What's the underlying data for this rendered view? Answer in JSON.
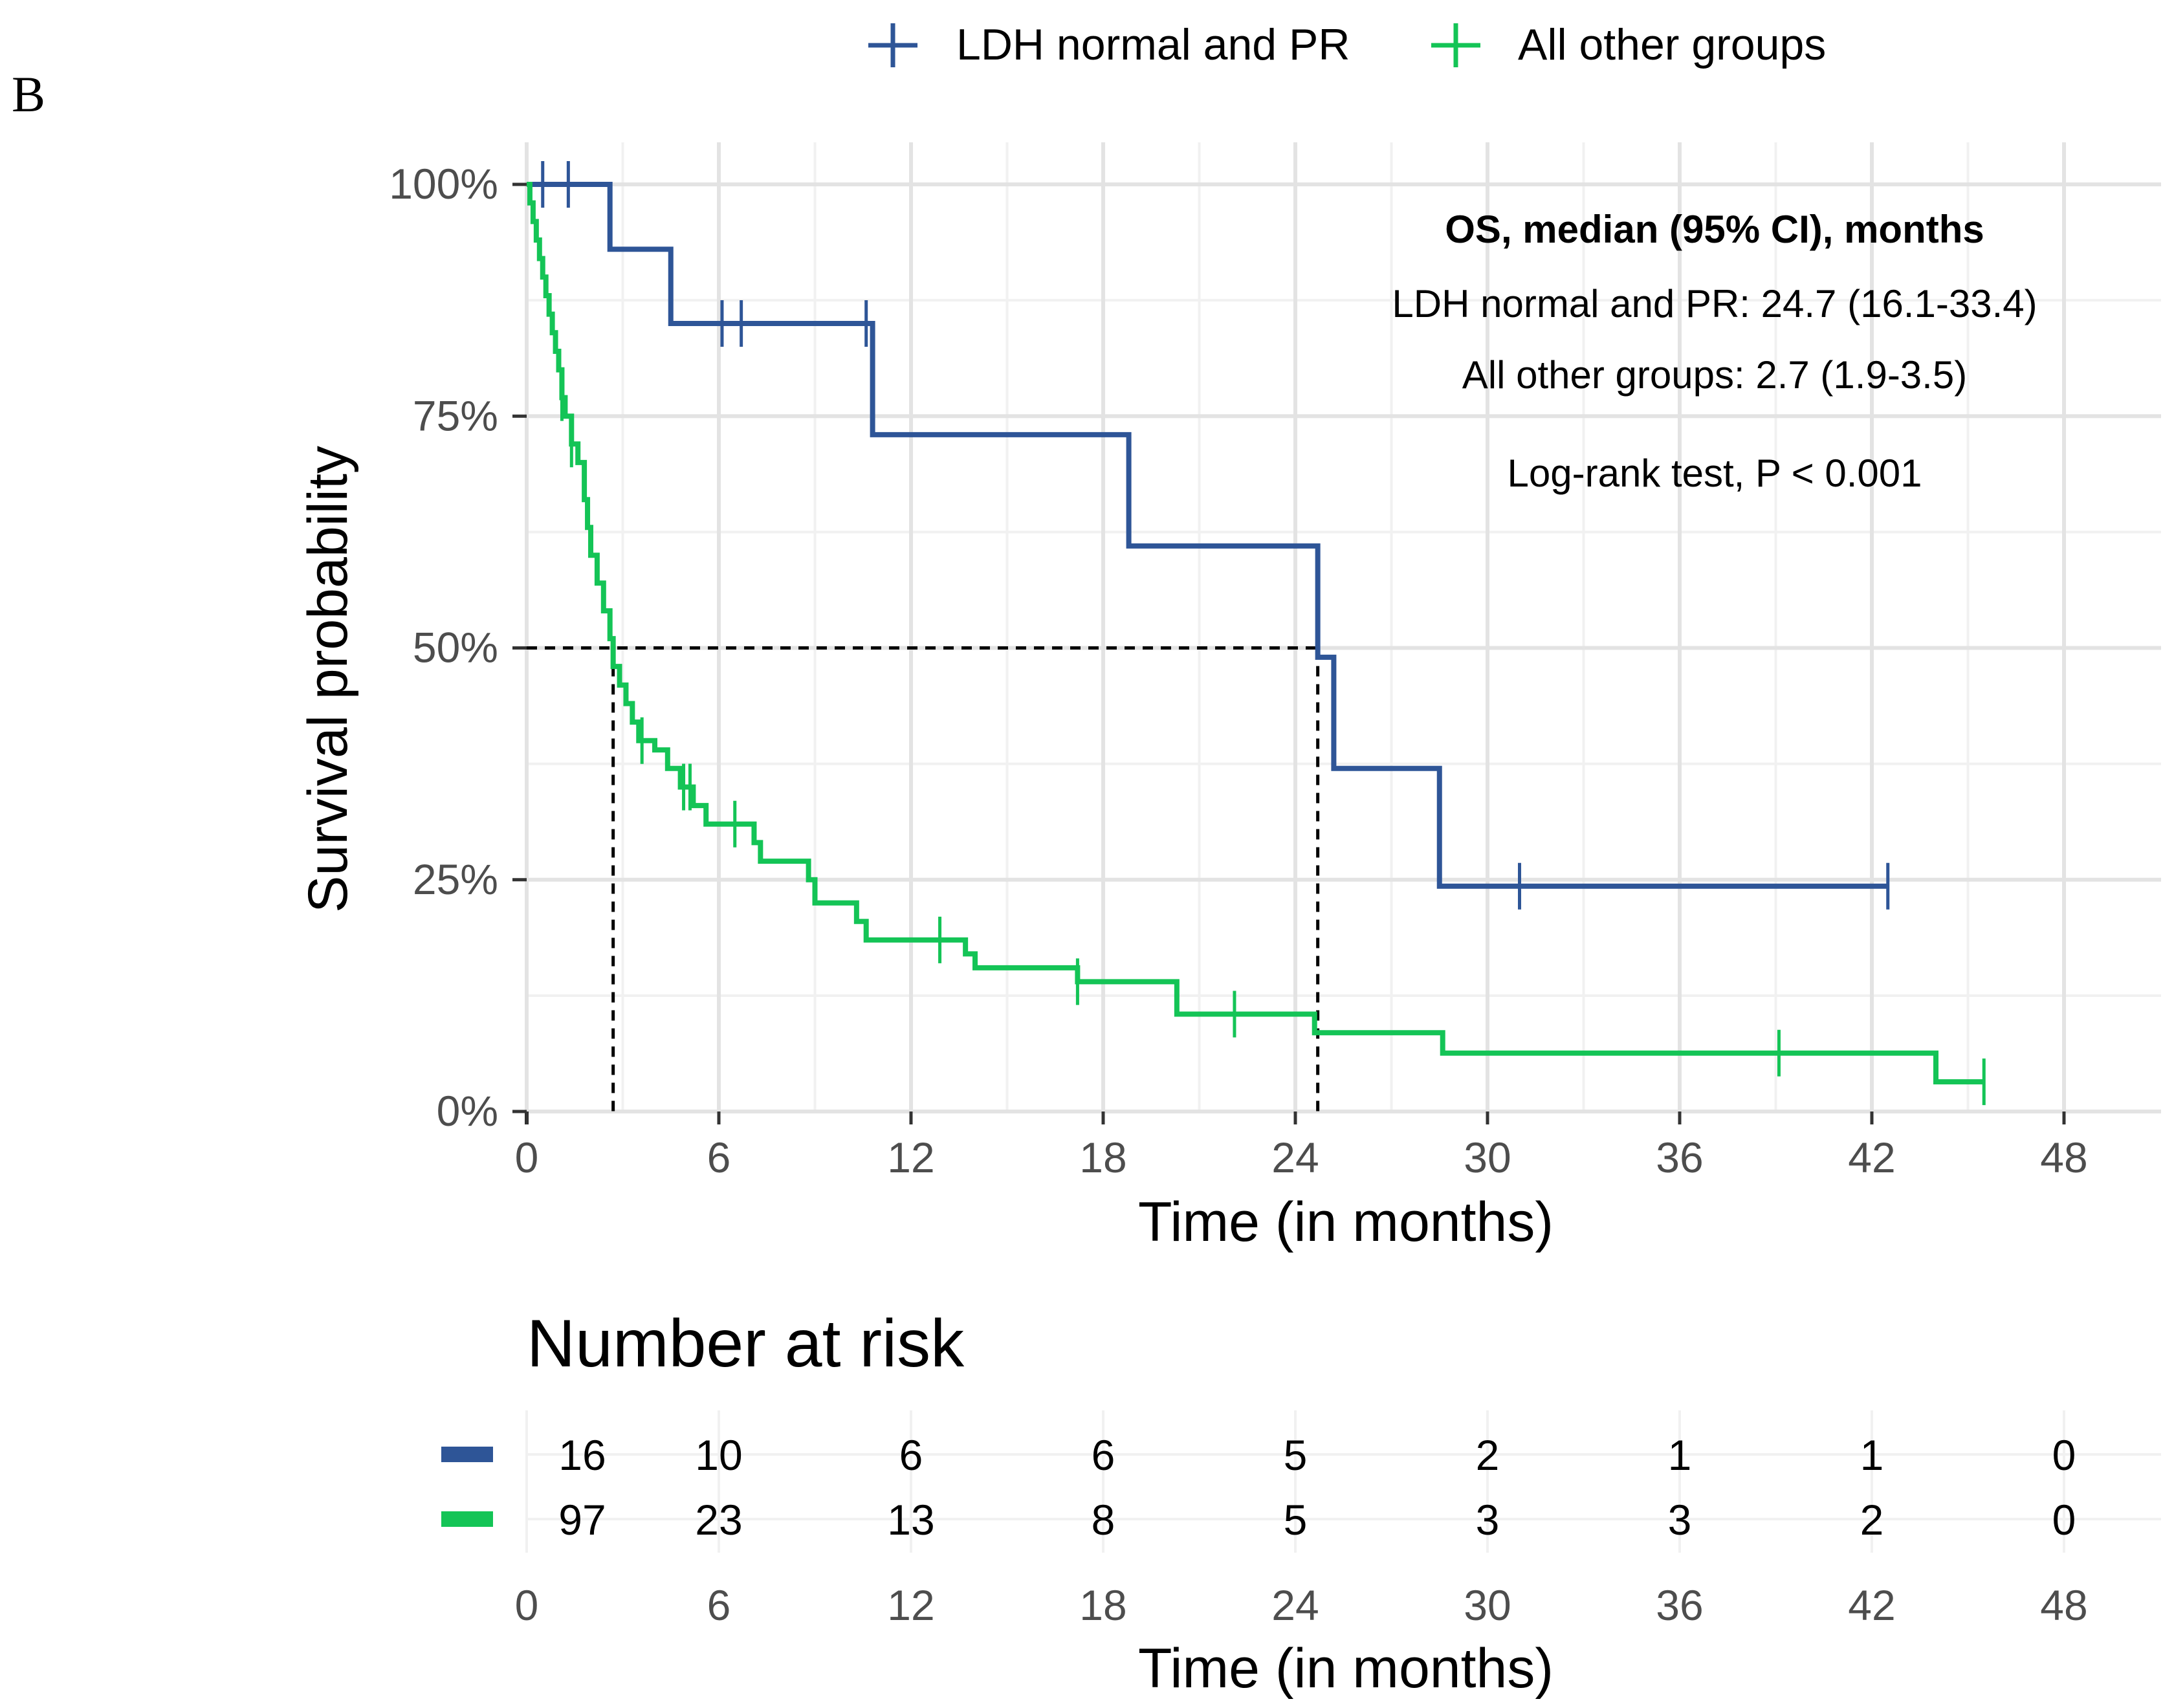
{
  "panel_label": "B",
  "colors": {
    "ldh": "#2e5597",
    "other": "#14c456",
    "grid_major": "#e3e3e3",
    "grid_minor": "#f1f1f1",
    "tick_text": "#4d4d4d",
    "text": "#000000"
  },
  "legend": {
    "ldh_label": "LDH normal and PR",
    "other_label": "All other groups"
  },
  "annotation": {
    "heading": "OS, median (95% CI), months",
    "ldh_line": "LDH normal and PR: 24.7 (16.1-33.4)",
    "other_line": "All other groups: 2.7 (1.9-3.5)",
    "test_line": "Log-rank test, P < 0.001"
  },
  "risk_table": {
    "title": "Number at risk",
    "xlabel": "Time (in months)",
    "times": [
      0,
      6,
      12,
      18,
      24,
      30,
      36,
      42,
      48
    ],
    "time_labels": [
      "0",
      "6",
      "12",
      "18",
      "24",
      "30",
      "36",
      "42",
      "48"
    ],
    "ldh_counts": [
      "16",
      "10",
      "6",
      "6",
      "5",
      "2",
      "1",
      "1",
      "0"
    ],
    "other_counts": [
      "97",
      "23",
      "13",
      "8",
      "5",
      "3",
      "3",
      "2",
      "0"
    ]
  },
  "chart_data": {
    "type": "line",
    "subtype": "kaplan-meier step",
    "xlabel": "Time (in months)",
    "ylabel": "Survival probability",
    "xlim": [
      0,
      48
    ],
    "ylim": [
      0,
      1
    ],
    "x_ticks": [
      0,
      6,
      12,
      18,
      24,
      30,
      36,
      42,
      48
    ],
    "x_tick_labels": [
      "0",
      "6",
      "12",
      "18",
      "24",
      "30",
      "36",
      "42",
      "48"
    ],
    "y_ticks": [
      0,
      0.25,
      0.5,
      0.75,
      1
    ],
    "y_tick_labels": [
      "0%",
      "25%",
      "50%",
      "75%",
      "100%"
    ],
    "legend_position": "top",
    "median_lines": [
      {
        "x": 2.7,
        "y": 0.5
      },
      {
        "x": 24.7,
        "y": 0.5
      }
    ],
    "series": [
      {
        "name": "LDH normal and PR",
        "color_key": "ldh",
        "steps": [
          [
            0,
            1.0
          ],
          [
            2.6,
            0.93
          ],
          [
            4.5,
            0.85
          ],
          [
            10.8,
            0.73
          ],
          [
            18.8,
            0.61
          ],
          [
            24.7,
            0.49
          ],
          [
            25.2,
            0.37
          ],
          [
            28.5,
            0.243
          ]
        ],
        "end_time": 42.5,
        "censor_times": [
          0.5,
          1.3,
          6.1,
          6.7,
          10.6,
          31.0,
          42.5
        ]
      },
      {
        "name": "All other groups",
        "color_key": "other",
        "steps": [
          [
            0,
            1.0
          ],
          [
            0.1,
            0.98
          ],
          [
            0.2,
            0.96
          ],
          [
            0.3,
            0.94
          ],
          [
            0.4,
            0.92
          ],
          [
            0.5,
            0.9
          ],
          [
            0.6,
            0.88
          ],
          [
            0.7,
            0.86
          ],
          [
            0.8,
            0.84
          ],
          [
            0.9,
            0.82
          ],
          [
            1.0,
            0.8
          ],
          [
            1.1,
            0.77
          ],
          [
            1.2,
            0.75
          ],
          [
            1.4,
            0.72
          ],
          [
            1.6,
            0.7
          ],
          [
            1.8,
            0.66
          ],
          [
            1.9,
            0.63
          ],
          [
            2.0,
            0.6
          ],
          [
            2.2,
            0.57
          ],
          [
            2.4,
            0.54
          ],
          [
            2.6,
            0.51
          ],
          [
            2.7,
            0.48
          ],
          [
            2.9,
            0.46
          ],
          [
            3.1,
            0.44
          ],
          [
            3.3,
            0.42
          ],
          [
            3.5,
            0.4
          ],
          [
            4.0,
            0.39
          ],
          [
            4.4,
            0.37
          ],
          [
            4.8,
            0.35
          ],
          [
            5.2,
            0.33
          ],
          [
            5.6,
            0.31
          ],
          [
            7.1,
            0.29
          ],
          [
            7.3,
            0.27
          ],
          [
            8.8,
            0.25
          ],
          [
            9.0,
            0.225
          ],
          [
            10.3,
            0.205
          ],
          [
            10.6,
            0.185
          ],
          [
            13.7,
            0.17
          ],
          [
            14.0,
            0.155
          ],
          [
            17.2,
            0.14
          ],
          [
            20.3,
            0.105
          ],
          [
            24.6,
            0.085
          ],
          [
            28.6,
            0.063
          ],
          [
            44.0,
            0.032
          ]
        ],
        "end_time": 45.5,
        "censor_times": [
          1.1,
          1.4,
          3.6,
          4.9,
          5.1,
          6.5,
          12.9,
          17.2,
          22.1,
          39.1,
          45.5
        ]
      }
    ]
  }
}
